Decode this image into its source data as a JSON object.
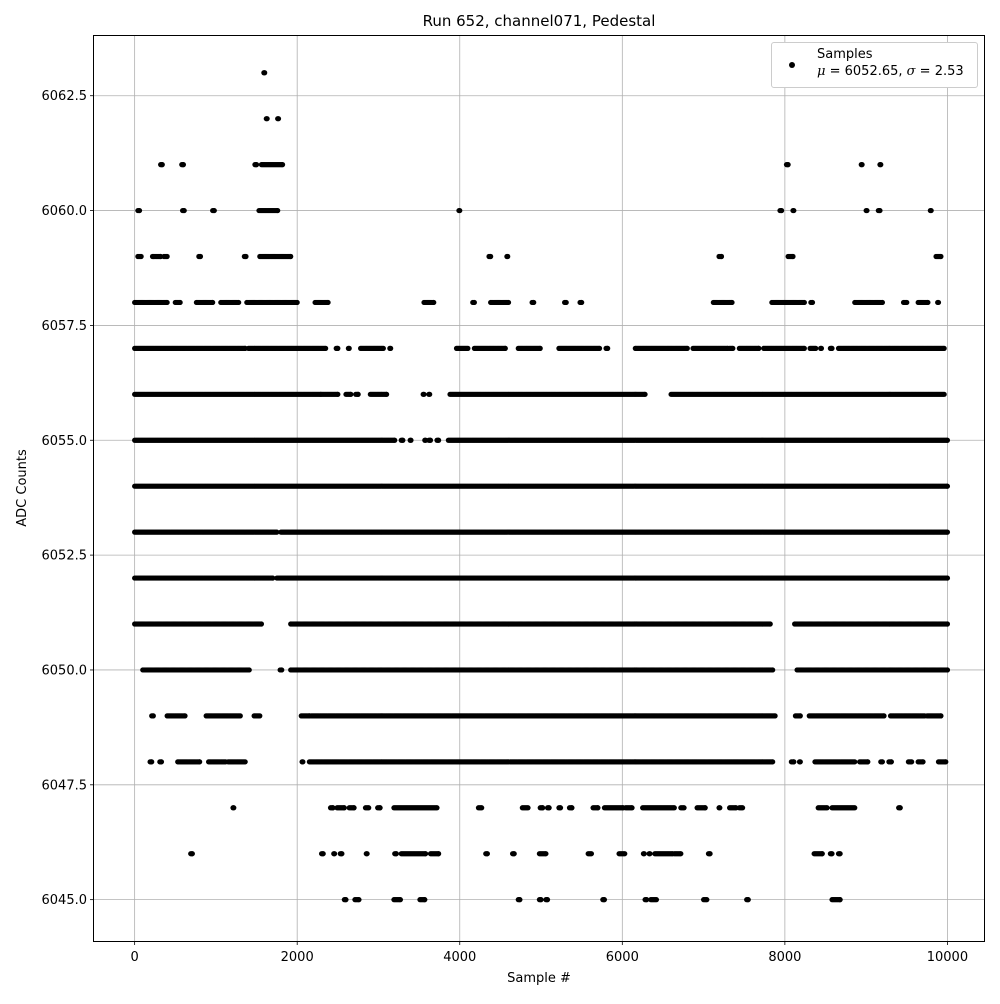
{
  "chart_data": {
    "type": "scatter",
    "title": "Run 652, channel071, Pedestal",
    "xlabel": "Sample #",
    "ylabel": "ADC Counts",
    "xlim": [
      -500,
      10450
    ],
    "ylim": [
      6044.1,
      6063.8
    ],
    "xticks": [
      0,
      2000,
      4000,
      6000,
      8000,
      10000
    ],
    "yticks": [
      6045.0,
      6047.5,
      6050.0,
      6052.5,
      6055.0,
      6057.5,
      6060.0,
      6062.5
    ],
    "xtick_labels": [
      "0",
      "2000",
      "4000",
      "6000",
      "8000",
      "10000"
    ],
    "ytick_labels": [
      "6045.0",
      "6047.5",
      "6050.0",
      "6052.5",
      "6055.0",
      "6057.5",
      "6060.0",
      "6062.5"
    ],
    "grid": true,
    "legend": "top-right",
    "marker_color": "#000000",
    "series": [
      {
        "name": "Samples",
        "stats_label": "μ = 6052.65, σ = 2.53",
        "stats": {
          "mu": "6052.65",
          "sigma": "2.53"
        },
        "value_levels": [
          {
            "y": 6063,
            "x_ranges": [
              [
                1590,
                1600
              ]
            ]
          },
          {
            "y": 6062,
            "x_ranges": [
              [
                1620,
                1630
              ],
              [
                1760,
                1770
              ]
            ]
          },
          {
            "y": 6061,
            "x_ranges": [
              [
                320,
                340
              ],
              [
                580,
                600
              ],
              [
                1480,
                1500
              ],
              [
                1560,
                1820
              ],
              [
                8020,
                8040
              ],
              [
                8940,
                8950
              ],
              [
                9170,
                9180
              ]
            ]
          },
          {
            "y": 6060,
            "x_ranges": [
              [
                40,
                60
              ],
              [
                590,
                610
              ],
              [
                960,
                980
              ],
              [
                1530,
                1760
              ],
              [
                3990,
                4000
              ],
              [
                7940,
                7960
              ],
              [
                8100,
                8110
              ],
              [
                9000,
                9010
              ],
              [
                9150,
                9170
              ],
              [
                9790,
                9800
              ]
            ]
          },
          {
            "y": 6059,
            "x_ranges": [
              [
                40,
                80
              ],
              [
                220,
                240
              ],
              [
                260,
                320
              ],
              [
                360,
                400
              ],
              [
                790,
                810
              ],
              [
                1350,
                1370
              ],
              [
                1540,
                1920
              ],
              [
                4360,
                4380
              ],
              [
                4580,
                4590
              ],
              [
                7190,
                7220
              ],
              [
                8040,
                8100
              ],
              [
                9860,
                9920
              ]
            ]
          },
          {
            "y": 6058,
            "x_ranges": [
              [
                0,
                400
              ],
              [
                500,
                560
              ],
              [
                760,
                960
              ],
              [
                1060,
                1280
              ],
              [
                1380,
                2000
              ],
              [
                2220,
                2380
              ],
              [
                3560,
                3680
              ],
              [
                4160,
                4180
              ],
              [
                4380,
                4600
              ],
              [
                4890,
                4910
              ],
              [
                5290,
                5310
              ],
              [
                5480,
                5500
              ],
              [
                7120,
                7350
              ],
              [
                7840,
                8240
              ],
              [
                8320,
                8340
              ],
              [
                8860,
                9200
              ],
              [
                9460,
                9500
              ],
              [
                9640,
                9760
              ],
              [
                9880,
                9890
              ]
            ]
          },
          {
            "y": 6057,
            "x_ranges": [
              [
                0,
                1360
              ],
              [
                1400,
                2350
              ],
              [
                2480,
                2500
              ],
              [
                2630,
                2640
              ],
              [
                2780,
                3060
              ],
              [
                3140,
                3150
              ],
              [
                3960,
                4100
              ],
              [
                4180,
                4560
              ],
              [
                4720,
                4990
              ],
              [
                5220,
                5720
              ],
              [
                5800,
                5820
              ],
              [
                6160,
                6800
              ],
              [
                6870,
                7300
              ],
              [
                7320,
                7360
              ],
              [
                7440,
                7680
              ],
              [
                7740,
                8240
              ],
              [
                8310,
                8380
              ],
              [
                8440,
                8450
              ],
              [
                8560,
                8580
              ],
              [
                8660,
                9960
              ]
            ]
          },
          {
            "y": 6056,
            "x_ranges": [
              [
                0,
                2290
              ],
              [
                2300,
                2500
              ],
              [
                2600,
                2660
              ],
              [
                2720,
                2750
              ],
              [
                2900,
                3100
              ],
              [
                3550,
                3560
              ],
              [
                3620,
                3630
              ],
              [
                3880,
                6280
              ],
              [
                6600,
                9960
              ]
            ]
          },
          {
            "y": 6055,
            "x_ranges": [
              [
                0,
                3200
              ],
              [
                3280,
                3300
              ],
              [
                3390,
                3400
              ],
              [
                3570,
                3580
              ],
              [
                3620,
                3640
              ],
              [
                3720,
                3740
              ],
              [
                3860,
                10000
              ]
            ]
          },
          {
            "y": 6054,
            "x_ranges": [
              [
                0,
                10000
              ]
            ]
          },
          {
            "y": 6053,
            "x_ranges": [
              [
                0,
                1750
              ],
              [
                1800,
                10000
              ]
            ]
          },
          {
            "y": 6052,
            "x_ranges": [
              [
                0,
                1700
              ],
              [
                1750,
                10000
              ]
            ]
          },
          {
            "y": 6051,
            "x_ranges": [
              [
                0,
                1560
              ],
              [
                1920,
                7820
              ],
              [
                8120,
                10000
              ]
            ]
          },
          {
            "y": 6050,
            "x_ranges": [
              [
                100,
                1410
              ],
              [
                1790,
                1810
              ],
              [
                1920,
                7850
              ],
              [
                8150,
                10000
              ]
            ]
          },
          {
            "y": 6049,
            "x_ranges": [
              [
                210,
                230
              ],
              [
                400,
                620
              ],
              [
                880,
                1300
              ],
              [
                1470,
                1540
              ],
              [
                2050,
                2150
              ],
              [
                2170,
                7880
              ],
              [
                8130,
                8190
              ],
              [
                8300,
                9220
              ],
              [
                9300,
                9720
              ],
              [
                9750,
                9920
              ]
            ]
          },
          {
            "y": 6048,
            "x_ranges": [
              [
                190,
                210
              ],
              [
                310,
                330
              ],
              [
                530,
                800
              ],
              [
                910,
                1120
              ],
              [
                1150,
                1360
              ],
              [
                2060,
                2070
              ],
              [
                2150,
                4600
              ],
              [
                4620,
                7850
              ],
              [
                8080,
                8110
              ],
              [
                8180,
                8190
              ],
              [
                8370,
                8860
              ],
              [
                8920,
                9020
              ],
              [
                9180,
                9200
              ],
              [
                9280,
                9310
              ],
              [
                9520,
                9560
              ],
              [
                9640,
                9700
              ],
              [
                9890,
                9980
              ]
            ]
          },
          {
            "y": 6047,
            "x_ranges": [
              [
                1210,
                1220
              ],
              [
                2410,
                2440
              ],
              [
                2490,
                2580
              ],
              [
                2640,
                2700
              ],
              [
                2840,
                2880
              ],
              [
                2990,
                3020
              ],
              [
                3190,
                3720
              ],
              [
                4230,
                4270
              ],
              [
                4770,
                4840
              ],
              [
                4990,
                5020
              ],
              [
                5080,
                5100
              ],
              [
                5220,
                5240
              ],
              [
                5350,
                5380
              ],
              [
                5640,
                5700
              ],
              [
                5780,
                6010
              ],
              [
                6040,
                6120
              ],
              [
                6250,
                6640
              ],
              [
                6720,
                6760
              ],
              [
                6920,
                7020
              ],
              [
                7190,
                7200
              ],
              [
                7320,
                7400
              ],
              [
                7440,
                7480
              ],
              [
                8410,
                8520
              ],
              [
                8580,
                8860
              ],
              [
                9400,
                9420
              ]
            ]
          },
          {
            "y": 6046,
            "x_ranges": [
              [
                690,
                710
              ],
              [
                2300,
                2320
              ],
              [
                2450,
                2460
              ],
              [
                2530,
                2550
              ],
              [
                2850,
                2860
              ],
              [
                3200,
                3220
              ],
              [
                3280,
                3580
              ],
              [
                3640,
                3740
              ],
              [
                4320,
                4340
              ],
              [
                4650,
                4670
              ],
              [
                4980,
                5060
              ],
              [
                5580,
                5620
              ],
              [
                5960,
                6030
              ],
              [
                6260,
                6270
              ],
              [
                6330,
                6340
              ],
              [
                6400,
                6620
              ],
              [
                6640,
                6720
              ],
              [
                7060,
                7080
              ],
              [
                8360,
                8460
              ],
              [
                8560,
                8580
              ],
              [
                8660,
                8680
              ]
            ]
          },
          {
            "y": 6045,
            "x_ranges": [
              [
                2580,
                2600
              ],
              [
                2710,
                2760
              ],
              [
                3190,
                3270
              ],
              [
                3510,
                3570
              ],
              [
                4720,
                4740
              ],
              [
                4980,
                5000
              ],
              [
                5060,
                5080
              ],
              [
                5760,
                5780
              ],
              [
                6280,
                6300
              ],
              [
                6350,
                6420
              ],
              [
                7000,
                7040
              ],
              [
                7530,
                7550
              ],
              [
                8580,
                8680
              ]
            ]
          }
        ]
      }
    ]
  }
}
